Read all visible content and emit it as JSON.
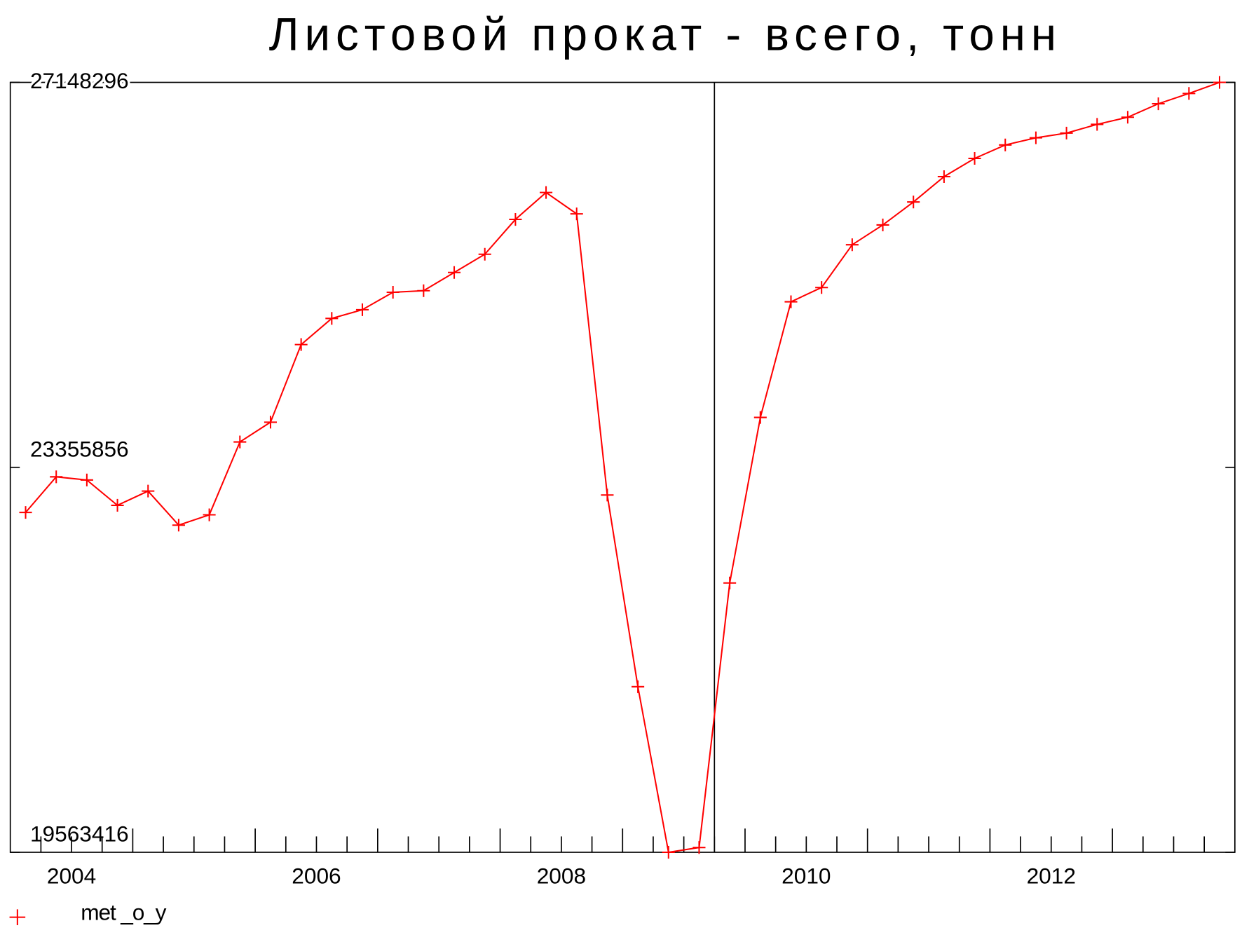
{
  "chart_data": {
    "type": "line",
    "title": "Листовой прокат - всего, тонн",
    "x": [
      2004.125,
      2004.375,
      2004.625,
      2004.875,
      2005.125,
      2005.375,
      2005.625,
      2005.875,
      2006.125,
      2006.375,
      2006.625,
      2006.875,
      2007.125,
      2007.375,
      2007.625,
      2007.875,
      2008.125,
      2008.375,
      2008.625,
      2008.875,
      2009.125,
      2009.375,
      2009.625,
      2009.875,
      2010.125,
      2010.375,
      2010.625,
      2010.875,
      2011.125,
      2011.375,
      2011.625,
      2011.875,
      2012.125,
      2012.375,
      2012.625,
      2012.875,
      2013.125,
      2013.375,
      2013.625,
      2013.875
    ],
    "series": [
      {
        "name": "met _o_y",
        "color": "#ff0000",
        "values": [
          22911300,
          23262300,
          23231100,
          22981500,
          23121900,
          22786400,
          22887800,
          23605700,
          23800700,
          24565400,
          24822900,
          24908800,
          25080500,
          25096000,
          25275500,
          25455000,
          25798400,
          26063700,
          25853000,
          23082900,
          21194500,
          19563416,
          19610400,
          22216600,
          23847500,
          24986800,
          25127300,
          25548600,
          25743700,
          25970000,
          26219700,
          26399200,
          26531800,
          26602100,
          26648900,
          26734700,
          26805000,
          26937600,
          27039100,
          27148296
        ]
      }
    ],
    "xlim": [
      2004,
      2014
    ],
    "xticks": [
      {
        "value": 2004.5,
        "label": "2004"
      },
      {
        "value": 2006.5,
        "label": "2006"
      },
      {
        "value": 2008.5,
        "label": "2008"
      },
      {
        "value": 2010.5,
        "label": "2010"
      },
      {
        "value": 2012.5,
        "label": "2012"
      }
    ],
    "ylim": [
      19563416,
      27148296
    ],
    "yticks": [
      19563416,
      23355856,
      27148296
    ],
    "vline": 2009.75
  }
}
